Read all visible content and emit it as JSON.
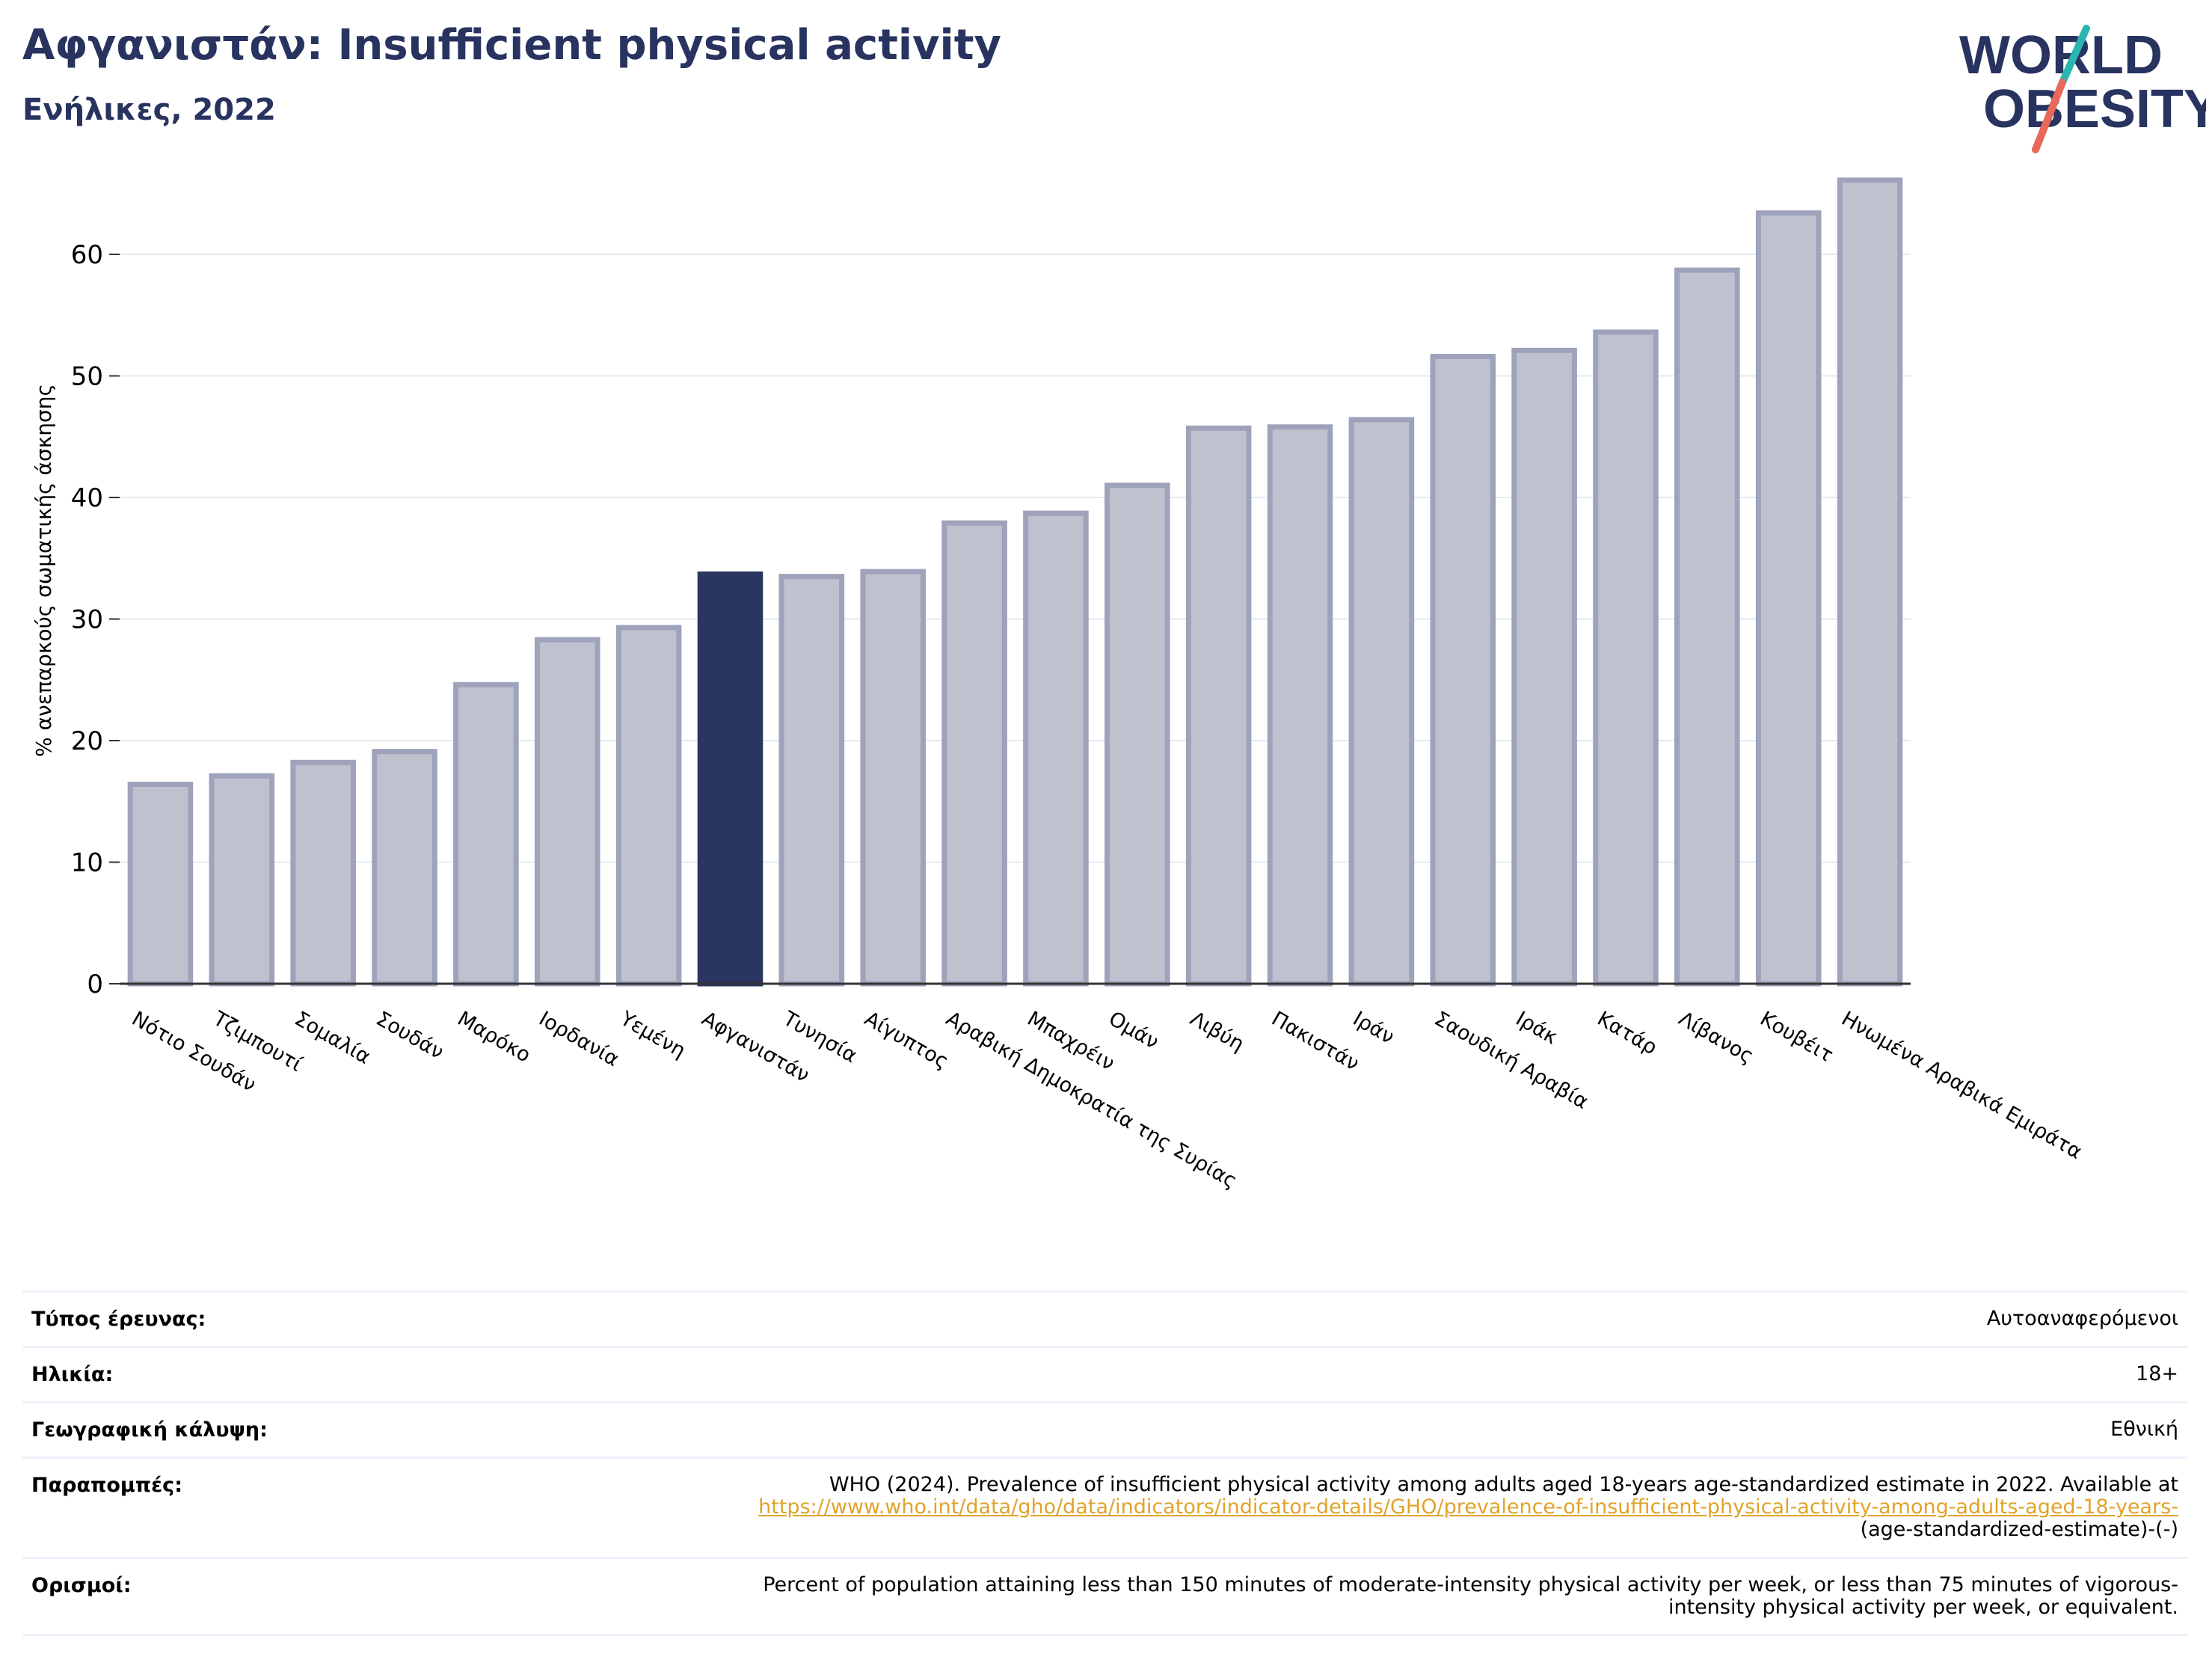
{
  "header": {
    "title": "Αφγανιστάν: Insufficient physical activity",
    "subtitle": "Ενήλικες, 2022"
  },
  "logo": {
    "line1": "WORLD",
    "line2": "OBESITY",
    "text_color": "#283360",
    "slash_top_color": "#2bb5b0",
    "slash_bottom_color": "#e8685a"
  },
  "chart_data": {
    "type": "bar",
    "title": "Αφγανιστάν: Insufficient physical activity",
    "subtitle": "Ενήλικες, 2022",
    "ylabel": "% ανεπαρκούς σωματικής άσκησης",
    "xlabel": "",
    "ylim": [
      0,
      68
    ],
    "yticks": [
      0,
      10,
      20,
      30,
      40,
      50,
      60
    ],
    "grid": true,
    "highlight_category": "Αφγανιστάν",
    "colors": {
      "bar": "#bfc1cf",
      "bar_edge": "#9ea3bb",
      "highlight": "#2a3560",
      "grid": "#e6e8f2",
      "axis": "#333333"
    },
    "categories": [
      "Νότιο Σουδάν",
      "Τζιμπουτί",
      "Σομαλία",
      "Σουδάν",
      "Μαρόκο",
      "Ιορδανία",
      "Υεμένη",
      "Αφγανιστάν",
      "Τυνησία",
      "Αίγυπτος",
      "Αραβική Δημοκρατία της Συρίας",
      "Μπαχρέιν",
      "Ομάν",
      "Λιβύη",
      "Πακιστάν",
      "Ιράν",
      "Σαουδική Αραβία",
      "Ιράκ",
      "Κατάρ",
      "Λίβανος",
      "Κουβέιτ",
      "Ηνωμένα Αραβικά Εμιράτα"
    ],
    "values": [
      16.4,
      17.1,
      18.2,
      19.1,
      24.6,
      28.3,
      29.3,
      33.7,
      33.5,
      33.9,
      37.9,
      38.7,
      41.0,
      45.7,
      45.8,
      46.4,
      51.6,
      52.1,
      53.6,
      58.7,
      63.4,
      66.1
    ]
  },
  "meta": [
    {
      "label": "Τύπος έρευνας:",
      "value": "Αυτοαναφερόμενοι"
    },
    {
      "label": "Ηλικία:",
      "value": "18+"
    },
    {
      "label": "Γεωγραφική κάλυψη:",
      "value": "Εθνική"
    },
    {
      "label": "Παραπομπές:",
      "value_prefix": "WHO (2024). Prevalence of insufficient physical activity among adults aged 18-years age-standardized estimate in 2022. Available at",
      "value_link": "https://www.who.int/data/gho/data/indicators/indicator-details/GHO/prevalence-of-insufficient-physical-activity-among-adults-aged-18-years-",
      "value_suffix": "(age-standardized-estimate)-(-)"
    },
    {
      "label": "Ορισμοί:",
      "value_line1": "Percent of population attaining less than 150 minutes of moderate-intensity physical activity per week, or less than 75 minutes of vigorous-",
      "value_line2": "intensity physical activity per week, or equivalent."
    }
  ]
}
